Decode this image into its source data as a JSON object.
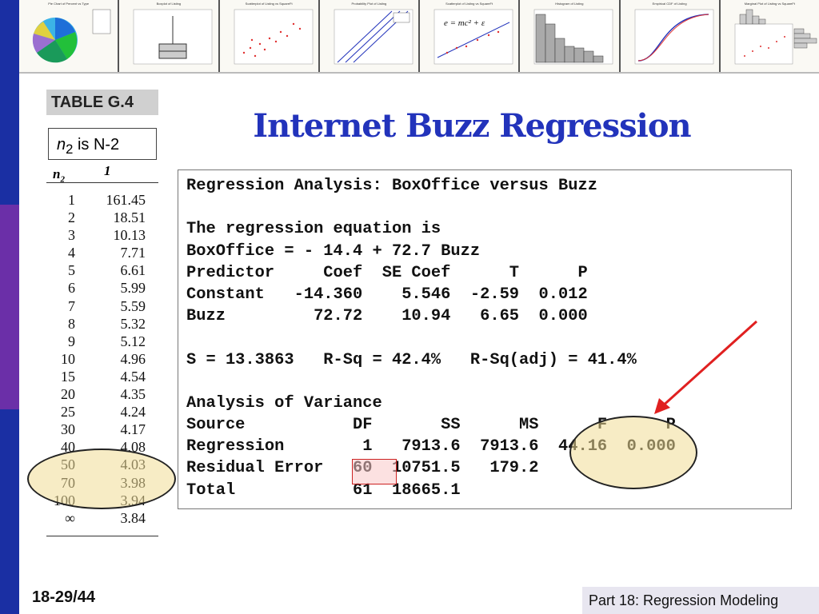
{
  "thumbnails": [
    {
      "title": "Pie Chart of Percent vs Type"
    },
    {
      "title": "Boxplot of Listing"
    },
    {
      "title": "Scatterplot of Listing vs SquareFt"
    },
    {
      "title": "Probability Plot of Listing"
    },
    {
      "title": "Scatterplot of Listing vs SquareFt"
    },
    {
      "title": "Histogram of Listing"
    },
    {
      "title": "Empirical CDF of Listing"
    },
    {
      "title": "Marginal Plot of Listing vs SquareFt"
    }
  ],
  "table": {
    "title": "TABLE G.4",
    "callout": {
      "var": "n",
      "sub": "2",
      "rest": " is N-2"
    },
    "col_n2": "n",
    "col_n2_sub": "2",
    "col_1": "1",
    "rows": [
      {
        "n": "1",
        "v": "161.45"
      },
      {
        "n": "2",
        "v": "18.51"
      },
      {
        "n": "3",
        "v": "10.13"
      },
      {
        "n": "4",
        "v": "7.71"
      },
      {
        "n": "5",
        "v": "6.61"
      },
      {
        "n": "6",
        "v": "5.99"
      },
      {
        "n": "7",
        "v": "5.59"
      },
      {
        "n": "8",
        "v": "5.32"
      },
      {
        "n": "9",
        "v": "5.12"
      },
      {
        "n": "10",
        "v": "4.96"
      },
      {
        "n": "15",
        "v": "4.54"
      },
      {
        "n": "20",
        "v": "4.35"
      },
      {
        "n": "25",
        "v": "4.24"
      },
      {
        "n": "30",
        "v": "4.17"
      },
      {
        "n": "40",
        "v": "4.08"
      },
      {
        "n": "50",
        "v": "4.03"
      },
      {
        "n": "70",
        "v": "3.98"
      },
      {
        "n": "100",
        "v": "3.94"
      },
      {
        "n": "∞",
        "v": "3.84"
      }
    ]
  },
  "slide_title": "Internet Buzz Regression",
  "output_lines": [
    "Regression Analysis: BoxOffice versus Buzz",
    "",
    "The regression equation is",
    "BoxOffice = - 14.4 + 72.7 Buzz",
    "Predictor     Coef  SE Coef      T      P",
    "Constant   -14.360    5.546  -2.59  0.012",
    "Buzz         72.72    10.94   6.65  0.000",
    "",
    "S = 13.3863   R-Sq = 42.4%   R-Sq(adj) = 41.4%",
    "",
    "Analysis of Variance",
    "Source           DF       SS      MS      F      P",
    "Regression        1   7913.6  7913.6  44.16  0.000",
    "Residual Error   60  10751.5   179.2",
    "Total            61  18665.1"
  ],
  "equation_in_thumbnail": "e = mc² + ε",
  "colors": {
    "title_blue": "#2233bb",
    "highlight": "#f0dc96",
    "arrow_red": "#e02020"
  },
  "slide_number": "18-29/44",
  "footer_label": "Part 18: Regression Modeling"
}
